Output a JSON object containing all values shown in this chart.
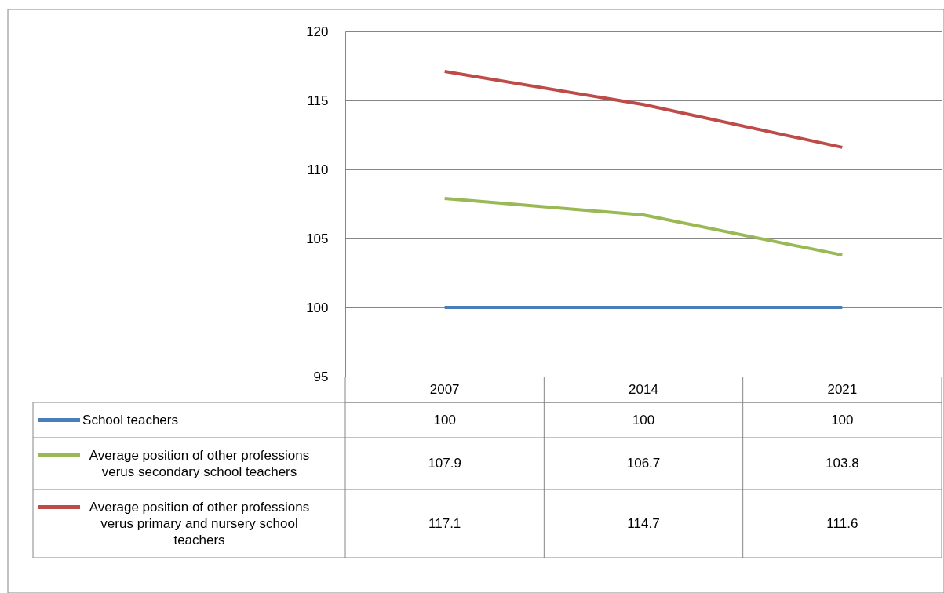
{
  "chart_data": {
    "type": "line",
    "categories": [
      "2007",
      "2014",
      "2021"
    ],
    "series": [
      {
        "name": "School teachers",
        "color": "#4a7ebb",
        "values": [
          100,
          100,
          100
        ]
      },
      {
        "name": "Average position of other professions verus secondary school teachers",
        "color": "#98b954",
        "values": [
          107.9,
          106.7,
          103.8
        ]
      },
      {
        "name": "Average position of other professions verus primary and nursery school teachers",
        "color": "#be4b48",
        "values": [
          117.1,
          114.7,
          111.6
        ]
      }
    ],
    "ylim": [
      95,
      120
    ],
    "yticks": [
      95,
      100,
      105,
      110,
      115,
      120
    ],
    "grid": "y",
    "legend": "bottom",
    "data_labels": true,
    "marker": "none",
    "line_style": "solid"
  }
}
